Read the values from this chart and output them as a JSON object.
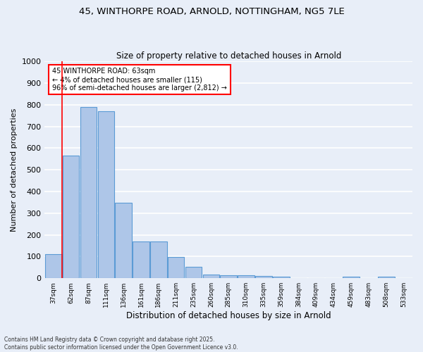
{
  "title1": "45, WINTHORPE ROAD, ARNOLD, NOTTINGHAM, NG5 7LE",
  "title2": "Size of property relative to detached houses in Arnold",
  "xlabel": "Distribution of detached houses by size in Arnold",
  "ylabel": "Number of detached properties",
  "categories": [
    "37sqm",
    "62sqm",
    "87sqm",
    "111sqm",
    "136sqm",
    "161sqm",
    "186sqm",
    "211sqm",
    "235sqm",
    "260sqm",
    "285sqm",
    "310sqm",
    "335sqm",
    "359sqm",
    "384sqm",
    "409sqm",
    "434sqm",
    "459sqm",
    "483sqm",
    "508sqm",
    "533sqm"
  ],
  "values": [
    112,
    565,
    790,
    770,
    348,
    168,
    168,
    97,
    52,
    17,
    13,
    13,
    10,
    8,
    0,
    0,
    0,
    7,
    0,
    7,
    0
  ],
  "bar_color": "#aec6e8",
  "bar_edge_color": "#5b9bd5",
  "bg_color": "#e8eef8",
  "grid_color": "#ffffff",
  "vline_x": 1,
  "annotation_title": "45 WINTHORPE ROAD: 63sqm",
  "annotation_line1": "← 4% of detached houses are smaller (115)",
  "annotation_line2": "96% of semi-detached houses are larger (2,812) →",
  "footer1": "Contains HM Land Registry data © Crown copyright and database right 2025.",
  "footer2": "Contains public sector information licensed under the Open Government Licence v3.0.",
  "ylim": [
    0,
    1000
  ],
  "yticks": [
    0,
    100,
    200,
    300,
    400,
    500,
    600,
    700,
    800,
    900,
    1000
  ]
}
